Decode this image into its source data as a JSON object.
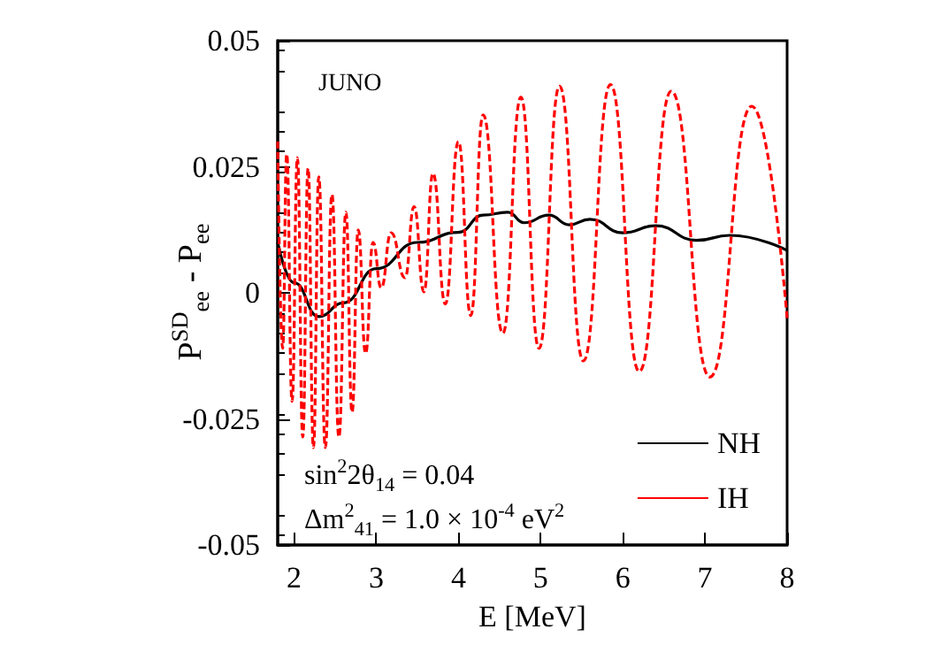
{
  "chart_data": {
    "type": "line",
    "xlabel": "E [MeV]",
    "ylabel": "P$^{SD}$$_{ee}$ - P$_{ee}$",
    "annotations": [
      "JUNO",
      "sin$^{2}$2θ$_{14}$ = 0.04",
      "Δm$^{2}$$_{41}$ = 1.0 × 10$^{-4}$ eV$^{2}$"
    ],
    "xlim": [
      1.8,
      8
    ],
    "xticks": [
      2,
      3,
      4,
      5,
      6,
      7,
      8
    ],
    "ylim": [
      -0.05,
      0.05
    ],
    "yticks": [
      -0.05,
      -0.025,
      0,
      0.025,
      0.05
    ],
    "grid": false,
    "legend": "bottom right",
    "marker": "none",
    "series": [
      {
        "name": "NH",
        "color": "#000000",
        "line_style": "solid",
        "x": [
          1.8,
          2.0,
          2.3,
          2.6,
          3.0,
          3.5,
          4.0,
          4.3,
          4.6,
          4.8,
          5.1,
          5.35,
          5.6,
          6.0,
          6.4,
          6.9,
          7.3,
          8.0
        ],
        "values": [
          0.01,
          0.002,
          -0.0047,
          -0.002,
          0.0048,
          0.01,
          0.012,
          0.0154,
          0.016,
          0.0139,
          0.0154,
          0.0135,
          0.0146,
          0.0119,
          0.0133,
          0.0104,
          0.0114,
          0.0084
        ]
      },
      {
        "name": "IH",
        "color": "#ff0000",
        "line_style": "dashed",
        "x": [
          1.8,
          1.86,
          1.91,
          1.975,
          2.04,
          2.105,
          2.17,
          2.235,
          2.3,
          2.38,
          2.46,
          2.545,
          2.63,
          2.705,
          2.78,
          2.87,
          2.96,
          3.06,
          3.18,
          3.35,
          3.46,
          3.58,
          3.69,
          3.84,
          4.0,
          4.15,
          4.3,
          4.54,
          4.76,
          4.98,
          5.23,
          5.52,
          5.85,
          6.2,
          6.59,
          7.06,
          7.57,
          8.0
        ],
        "values": [
          0.03,
          -0.011,
          0.0275,
          -0.0215,
          0.0268,
          -0.0286,
          0.0247,
          -0.0307,
          0.023,
          -0.0307,
          0.0195,
          -0.0286,
          0.016,
          -0.0237,
          0.0125,
          -0.012,
          0.01,
          0.001,
          0.0119,
          0.003,
          0.0171,
          0.0002,
          0.0237,
          -0.0022,
          0.03,
          -0.0045,
          0.0353,
          -0.008,
          0.0388,
          -0.011,
          0.041,
          -0.0135,
          0.0413,
          -0.0156,
          0.04,
          -0.0167,
          0.037,
          -0.005
        ]
      }
    ]
  }
}
